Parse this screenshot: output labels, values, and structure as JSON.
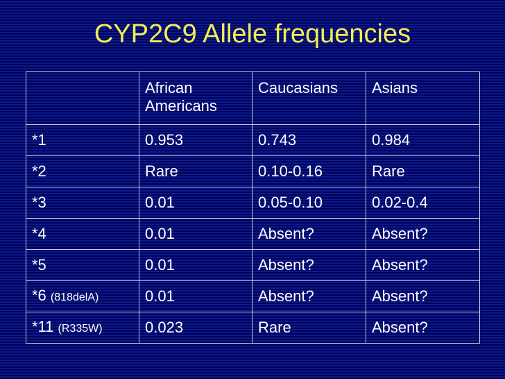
{
  "title": "CYP2C9 Allele frequencies",
  "table": {
    "columns": [
      "African Americans",
      "Caucasians",
      "Asians"
    ],
    "rows": [
      {
        "allele": "*1",
        "values": [
          0.953,
          0.743,
          0.984
        ]
      },
      {
        "allele": "*2",
        "values": [
          "Rare",
          "0.10-0.16",
          "Rare"
        ]
      },
      {
        "allele": "*3",
        "values": [
          0.01,
          "0.05-0.10",
          "0.02-0.4"
        ]
      },
      {
        "allele": "*4",
        "values": [
          0.01,
          "Absent?",
          "Absent?"
        ]
      },
      {
        "allele": "*5",
        "values": [
          0.01,
          "Absent?",
          "Absent?"
        ]
      },
      {
        "allele": "*6",
        "note": "(818delA)",
        "values": [
          0.01,
          "Absent?",
          "Absent?"
        ]
      },
      {
        "allele": "*11",
        "note": "(R335W)",
        "values": [
          0.023,
          "Rare",
          "Absent?"
        ]
      }
    ]
  }
}
